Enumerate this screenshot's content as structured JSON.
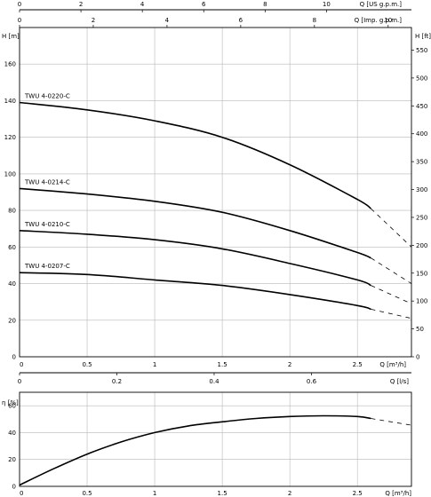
{
  "chart_data": [
    {
      "type": "line",
      "name": "head-chart",
      "xlabel": "Q [m³/h]",
      "ylabel": "H [m]",
      "y2label": "H [ft]",
      "top_axis_1_label": "Q [US g.p.m.]",
      "top_axis_2_label": "Q [Imp. g.p.m.]",
      "bottom_axis_2_label": "Q [l/s]",
      "xlim": [
        0,
        2.9
      ],
      "ylim": [
        0,
        180
      ],
      "grid": true,
      "x_ticks": [
        0,
        0.5,
        1,
        1.5,
        2,
        2.5
      ],
      "y_ticks": [
        0,
        20,
        40,
        60,
        80,
        100,
        120,
        140,
        160
      ],
      "ft_ticks": [
        0,
        50,
        100,
        150,
        200,
        250,
        300,
        350,
        400,
        450,
        500,
        550
      ],
      "us_gpm_ticks": [
        0,
        2,
        4,
        6,
        8,
        10
      ],
      "imp_gpm_ticks": [
        0,
        2,
        4,
        6,
        8,
        10
      ],
      "ls_ticks": [
        0,
        0.2,
        0.4,
        0.6
      ],
      "series": [
        {
          "name": "TWU 4-0220-C",
          "x": [
            0,
            0.5,
            1.0,
            1.5,
            2.0,
            2.5,
            2.6
          ],
          "y": [
            139,
            135,
            129,
            120,
            105,
            86,
            81
          ],
          "dashed_x": [
            2.6,
            2.9
          ],
          "dashed_y": [
            81,
            60
          ]
        },
        {
          "name": "TWU 4-0214-C",
          "x": [
            0,
            0.5,
            1.0,
            1.5,
            2.0,
            2.5,
            2.6
          ],
          "y": [
            92,
            89,
            85,
            79,
            69,
            57,
            54
          ],
          "dashed_x": [
            2.6,
            2.9
          ],
          "dashed_y": [
            54,
            40
          ]
        },
        {
          "name": "TWU 4-0210-C",
          "x": [
            0,
            0.5,
            1.0,
            1.5,
            2.0,
            2.5,
            2.6
          ],
          "y": [
            69,
            67,
            64,
            59,
            51,
            42,
            39
          ],
          "dashed_x": [
            2.6,
            2.9
          ],
          "dashed_y": [
            39,
            29
          ]
        },
        {
          "name": "TWU 4-0207-C",
          "x": [
            0,
            0.5,
            1.0,
            1.5,
            2.0,
            2.5,
            2.6
          ],
          "y": [
            46,
            45,
            42,
            39,
            34,
            28,
            26
          ],
          "dashed_x": [
            2.6,
            2.9
          ],
          "dashed_y": [
            26,
            21
          ]
        }
      ]
    },
    {
      "type": "line",
      "name": "efficiency-chart",
      "xlabel": "Q [m³/h]",
      "ylabel": "η [%]",
      "xlim": [
        0,
        2.9
      ],
      "ylim": [
        0,
        70
      ],
      "grid": true,
      "x_ticks": [
        0,
        0.5,
        1,
        1.5,
        2,
        2.5
      ],
      "y_ticks": [
        0,
        20,
        40,
        60
      ],
      "series": [
        {
          "name": "",
          "x": [
            0,
            0.25,
            0.5,
            0.75,
            1.0,
            1.25,
            1.5,
            1.75,
            2.0,
            2.25,
            2.5,
            2.6
          ],
          "y": [
            1,
            13,
            24,
            33,
            40,
            45,
            48,
            50.5,
            52,
            52.5,
            52,
            50.5
          ],
          "dashed_x": [
            2.6,
            2.9
          ],
          "dashed_y": [
            50.5,
            45.5
          ]
        }
      ]
    }
  ]
}
